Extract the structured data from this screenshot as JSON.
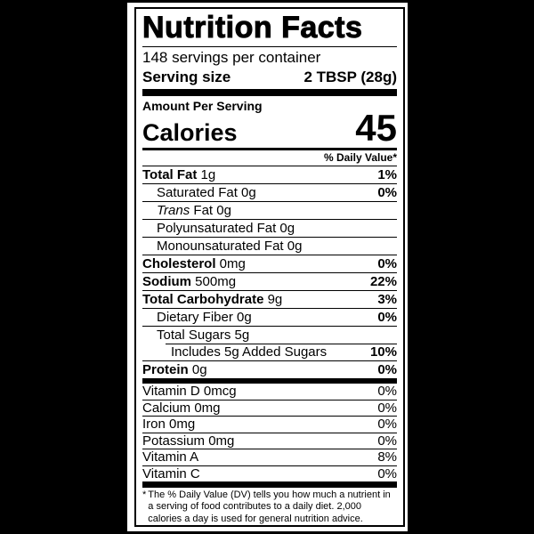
{
  "colors": {
    "background": "#000000",
    "label_bg": "#ffffff",
    "ink": "#000000"
  },
  "label": {
    "title": "Nutrition Facts",
    "servings_per_container": "148 servings per container",
    "serving_size_label": "Serving size",
    "serving_size_value": "2 TBSP (28g)",
    "amount_per_serving": "Amount Per Serving",
    "calories_label": "Calories",
    "calories_value": "45",
    "daily_value_header": "% Daily Value*",
    "nutrients": [
      {
        "label": "Total Fat",
        "label_bold": true,
        "amount": "1g",
        "dv": "1%",
        "dv_bold": true,
        "indent": 0
      },
      {
        "label": "Saturated Fat",
        "amount": "0g",
        "dv": "0%",
        "dv_bold": true,
        "indent": 1
      },
      {
        "label": "Trans",
        "label_italic": true,
        "amount": "Fat 0g",
        "dv": "",
        "indent": 1
      },
      {
        "label": "Polyunsaturated Fat",
        "amount": "0g",
        "dv": "",
        "indent": 1
      },
      {
        "label": "Monounsaturated Fat",
        "amount": "0g",
        "dv": "",
        "indent": 1
      },
      {
        "label": "Cholesterol",
        "label_bold": true,
        "amount": "0mg",
        "dv": "0%",
        "dv_bold": true,
        "indent": 0
      },
      {
        "label": "Sodium",
        "label_bold": true,
        "amount": "500mg",
        "dv": "22%",
        "dv_bold": true,
        "indent": 0
      },
      {
        "label": "Total Carbohydrate",
        "label_bold": true,
        "amount": "9g",
        "dv": "3%",
        "dv_bold": true,
        "indent": 0
      },
      {
        "label": "Dietary Fiber",
        "amount": "0g",
        "dv": "0%",
        "dv_bold": true,
        "indent": 1
      },
      {
        "label": "Total Sugars",
        "amount": "5g",
        "dv": "",
        "indent": 1
      },
      {
        "label": "Includes 5g Added Sugars",
        "amount": "",
        "dv": "10%",
        "dv_bold": true,
        "indent": 2,
        "rule_inset": true
      },
      {
        "label": "Protein",
        "label_bold": true,
        "amount": "0g",
        "dv": "0%",
        "dv_bold": true,
        "indent": 0
      }
    ],
    "vitamins": [
      {
        "label": "Vitamin D 0mcg",
        "dv": "0%"
      },
      {
        "label": "Calcium 0mg",
        "dv": "0%"
      },
      {
        "label": "Iron 0mg",
        "dv": "0%"
      },
      {
        "label": "Potassium 0mg",
        "dv": "0%"
      },
      {
        "label": "Vitamin A",
        "dv": "8%"
      },
      {
        "label": "Vitamin C",
        "dv": "0%"
      }
    ],
    "footnote_asterisk": "*",
    "footnote": "The % Daily Value (DV) tells you how much a nutrient in a serving of food contributes to a daily diet. 2,000 calories a day is used for general nutrition advice."
  }
}
